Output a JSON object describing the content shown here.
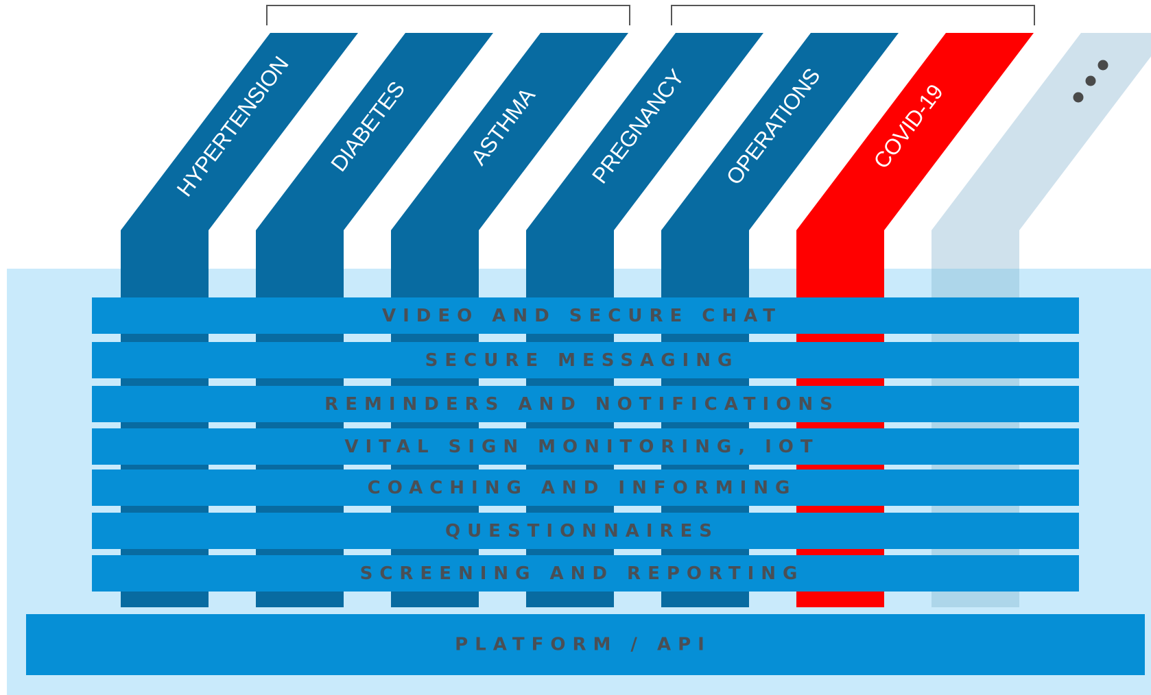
{
  "columns": [
    {
      "label": "HYPERTENSION",
      "color": "#086ba1",
      "kind": "condition"
    },
    {
      "label": "DIABETES",
      "color": "#086ba1",
      "kind": "condition"
    },
    {
      "label": "ASTHMA",
      "color": "#086ba1",
      "kind": "condition"
    },
    {
      "label": "PREGNANCY",
      "color": "#086ba1",
      "kind": "condition"
    },
    {
      "label": "OPERATIONS",
      "color": "#086ba1",
      "kind": "condition"
    },
    {
      "label": "COVID-19",
      "color": "#ff0000",
      "kind": "highlight"
    },
    {
      "label": "",
      "color": "#cfe1ec",
      "kind": "more",
      "icon": "ellipsis-icon"
    }
  ],
  "layers": [
    "VIDEO AND SECURE CHAT",
    "SECURE MESSAGING",
    "REMINDERS AND NOTIFICATIONS",
    "VITAL SIGN MONITORING, IOT",
    "COACHING AND INFORMING",
    "QUESTIONNAIRES",
    "SCREENING AND REPORTING"
  ],
  "platform": {
    "label": "PLATFORM / API"
  },
  "colors": {
    "background_panel": "#c9eafb",
    "layer_band": "#068fd6",
    "platform_band": "#068fd6",
    "column_dark": "#086ba1",
    "highlight": "#ff0000",
    "placeholder": "#cfe1ec",
    "label_text": "#4a4f55",
    "bracket": "#555555"
  }
}
